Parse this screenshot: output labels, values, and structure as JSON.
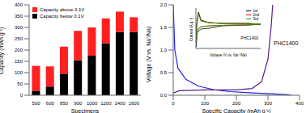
{
  "chart_data": [
    {
      "type": "bar",
      "stacked": true,
      "legend": "upper left",
      "categories": [
        "500",
        "600",
        "850",
        "900",
        "1000",
        "1200",
        "1400",
        "1600"
      ],
      "x_label": "Specimens",
      "y_label": "Capacity (mAh g⁻¹)",
      "ylim": [
        0,
        400
      ],
      "yticks": [
        0,
        50,
        100,
        150,
        200,
        250,
        300,
        350,
        400
      ],
      "series": [
        {
          "name": "Capacity below 0.1V",
          "color": "#000000",
          "values": [
            20,
            38,
            95,
            155,
            175,
            230,
            280,
            280
          ]
        },
        {
          "name": "Capacity above 0.1V",
          "color": "#ff2020",
          "values": [
            110,
            90,
            120,
            130,
            125,
            110,
            90,
            65
          ]
        }
      ]
    },
    {
      "type": "line",
      "x_label": "Specific Capacity (mAh g⁻¹)",
      "y_label": "Voltage (V vs. Na⁺/Na)",
      "xlim": [
        0,
        400
      ],
      "xticks": [
        0,
        100,
        200,
        300,
        400
      ],
      "ylim": [
        0,
        2
      ],
      "yticks": [
        {
          "value": 0,
          "label": "0.0"
        },
        0.5,
        {
          "value": 1,
          "label": "1.0"
        },
        1.5,
        {
          "value": 2,
          "label": "2.0"
        }
      ],
      "annotations": [
        "PHC1400"
      ],
      "series": [
        {
          "color": "#2020e0",
          "x": [
            0,
            5,
            15,
            40,
            80,
            130,
            180,
            250,
            320,
            360,
            375
          ],
          "values": [
            2.0,
            1.0,
            0.6,
            0.35,
            0.2,
            0.12,
            0.08,
            0.05,
            0.03,
            0.01,
            0.0
          ]
        },
        {
          "color": "#5b1a8c",
          "x": [
            0,
            20,
            100,
            200,
            250,
            280,
            300,
            310,
            315
          ],
          "values": [
            0.05,
            0.1,
            0.12,
            0.12,
            0.15,
            0.3,
            0.8,
            1.5,
            2.0
          ]
        }
      ]
    },
    {
      "type": "line",
      "x_label": "Voltage (V vs. Na⁺/Na)",
      "y_label": "Current (A g⁻¹)",
      "xlim": [
        0,
        2.5
      ],
      "ylim": [
        -0.3,
        0.2
      ],
      "tick_labels": false,
      "legend": "upper right",
      "annotations": [
        "PHC1400"
      ],
      "series": [
        {
          "name": "1st",
          "color": "#000000",
          "x": [
            2.5,
            2.0,
            1.5,
            1.0,
            0.5,
            0.2,
            0.05,
            0.01,
            0.03,
            0.1,
            0.2,
            0.5,
            1.0,
            1.5,
            2.0,
            2.5
          ],
          "values": [
            0.0,
            -0.01,
            -0.015,
            -0.02,
            -0.05,
            -0.06,
            -0.1,
            -0.28,
            0.0,
            0.15,
            0.05,
            0.02,
            0.01,
            0.01,
            0.01,
            0.0
          ]
        },
        {
          "name": "2nd",
          "color": "#ff0000",
          "x": [
            2.5,
            2.0,
            1.5,
            1.0,
            0.5,
            0.2,
            0.05,
            0.01,
            0.03,
            0.1,
            0.2,
            0.5,
            1.0,
            1.5,
            2.0,
            2.5
          ],
          "values": [
            0.0,
            -0.01,
            -0.01,
            -0.015,
            -0.02,
            -0.03,
            -0.08,
            -0.22,
            0.0,
            0.13,
            0.04,
            0.02,
            0.01,
            0.01,
            0.01,
            0.0
          ]
        },
        {
          "name": "3rd",
          "color": "#00aa00",
          "x": [
            2.5,
            2.0,
            1.5,
            1.0,
            0.5,
            0.2,
            0.05,
            0.01,
            0.03,
            0.1,
            0.2,
            0.5,
            1.0,
            1.5,
            2.0,
            2.5
          ],
          "values": [
            0.0,
            -0.01,
            -0.01,
            -0.015,
            -0.02,
            -0.03,
            -0.07,
            -0.2,
            0.0,
            0.12,
            0.04,
            0.02,
            0.01,
            0.01,
            0.01,
            0.0
          ]
        }
      ]
    }
  ]
}
